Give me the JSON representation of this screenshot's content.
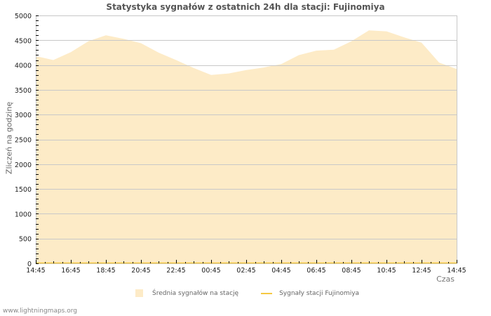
{
  "title": "Statystyka sygnałów z ostatnich 24h dla stacji: Fujinomiya",
  "footer": "www.lightningmaps.org",
  "colors": {
    "area_fill": "#fdebc7",
    "station_line": "#f5c842",
    "grid": "#c8c8c8",
    "axis": "#c8c8c8"
  },
  "legend": {
    "items": [
      {
        "label": "Średnia sygnałów na stację",
        "type": "area"
      },
      {
        "label": "Sygnały stacji Fujinomiya",
        "type": "line"
      }
    ]
  },
  "chart_data": {
    "type": "area",
    "title": "Statystyka sygnałów z ostatnich 24h dla stacji: Fujinomiya",
    "xlabel": "Czas",
    "ylabel": "Zliczeń na godzinę",
    "ylim": [
      0,
      5000
    ],
    "yticks": [
      0,
      500,
      1000,
      1500,
      2000,
      2500,
      3000,
      3500,
      4000,
      4500,
      5000
    ],
    "xtick_labels": [
      "14:45",
      "16:45",
      "18:45",
      "20:45",
      "22:45",
      "00:45",
      "02:45",
      "04:45",
      "06:45",
      "08:45",
      "10:45",
      "12:45",
      "14:45"
    ],
    "grid": true,
    "legend_position": "bottom",
    "x": [
      "14:45",
      "15:45",
      "16:45",
      "17:45",
      "18:45",
      "19:45",
      "20:45",
      "21:45",
      "22:45",
      "23:45",
      "00:45",
      "01:45",
      "02:45",
      "03:45",
      "04:45",
      "05:45",
      "06:45",
      "07:45",
      "08:45",
      "09:45",
      "10:45",
      "11:45",
      "12:45",
      "13:45",
      "14:45"
    ],
    "series": [
      {
        "name": "Średnia sygnałów na stację",
        "type": "area",
        "values": [
          4180,
          4100,
          4260,
          4480,
          4600,
          4530,
          4440,
          4250,
          4100,
          3940,
          3800,
          3830,
          3900,
          3950,
          4020,
          4200,
          4290,
          4310,
          4480,
          4700,
          4680,
          4560,
          4450,
          4050,
          3920
        ]
      },
      {
        "name": "Sygnały stacji Fujinomiya",
        "type": "line",
        "values": [
          0,
          0,
          0,
          0,
          0,
          0,
          0,
          0,
          0,
          0,
          0,
          0,
          0,
          0,
          0,
          0,
          0,
          0,
          0,
          0,
          0,
          0,
          0,
          0,
          0
        ]
      }
    ]
  }
}
